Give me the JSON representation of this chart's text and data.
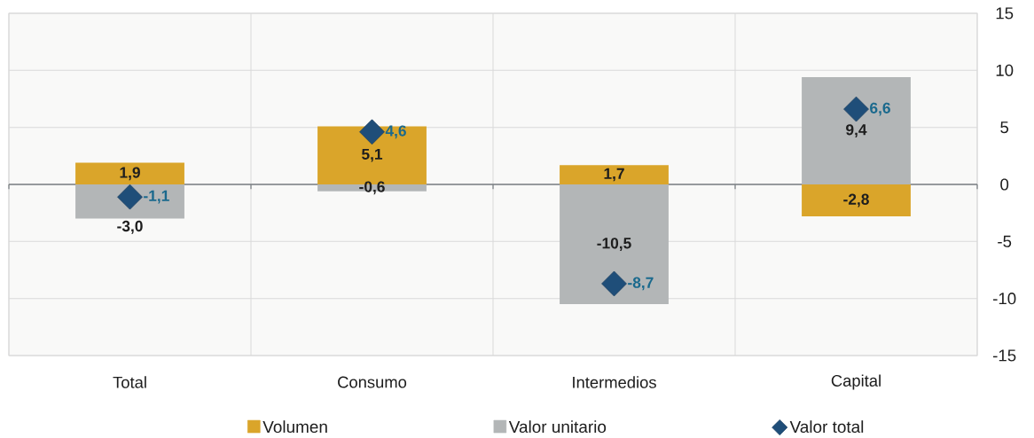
{
  "chart_data": {
    "type": "bar",
    "categories": [
      "Total",
      "Consumo",
      "Intermedios",
      "Capital"
    ],
    "stacked": true,
    "series": [
      {
        "name": "Volumen",
        "color": "#daa52a",
        "values": [
          1.9,
          5.1,
          1.7,
          -2.8
        ],
        "value_labels": [
          "1,9",
          "5,1",
          "1,7",
          "-2,8"
        ]
      },
      {
        "name": "Valor unitario",
        "color": "#b3b6b7",
        "values": [
          -3.0,
          -0.6,
          -10.5,
          9.4
        ],
        "value_labels": [
          "-3,0",
          "-0,6",
          "-10,5",
          "9,4"
        ]
      },
      {
        "name": "Valor total",
        "type": "scatter",
        "marker": "diamond",
        "color": "#1f4e79",
        "values": [
          -1.1,
          4.6,
          -8.7,
          6.6
        ],
        "value_labels": [
          "-1,1",
          "4,6",
          "-8,7",
          "6,6"
        ]
      }
    ],
    "ylim": [
      -15,
      15
    ],
    "yticks": [
      -15,
      -10,
      -5,
      0,
      5,
      10,
      15
    ],
    "grid": true,
    "legend": "bottom"
  }
}
